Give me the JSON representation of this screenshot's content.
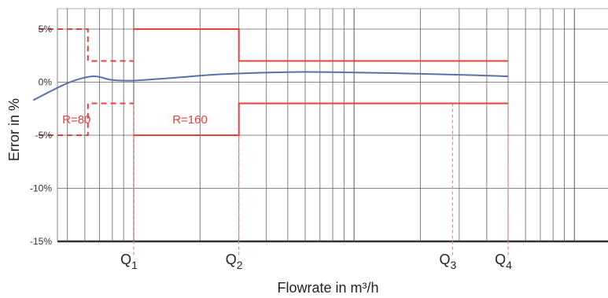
{
  "chart_data": {
    "type": "line",
    "title": "",
    "xlabel": "Flowrate in m³/h",
    "ylabel": "Error in %",
    "y_ticks": [
      "5%",
      "0%",
      "-5%",
      "-10%",
      "-15%"
    ],
    "y_tick_values": [
      5,
      0,
      -5,
      -10,
      -15
    ],
    "ylim": [
      -15,
      5
    ],
    "x_scale": "log",
    "grid": true,
    "colors": {
      "curve": "#5b6ea8",
      "limit": "#e8403c",
      "grid": "#444444",
      "guide": "#f08a82"
    },
    "flow_markers": [
      {
        "base": "Q",
        "sub": "1",
        "x": 1.0
      },
      {
        "base": "Q",
        "sub": "2",
        "x": 3.0
      },
      {
        "base": "Q",
        "sub": "3",
        "x": 28.0
      },
      {
        "base": "Q",
        "sub": "4",
        "x": 50.0
      }
    ],
    "annotations": [
      {
        "text": "R=80",
        "x": 0.55,
        "y": -3.9
      },
      {
        "text": "R=160",
        "x": 1.8,
        "y": -3.9
      }
    ],
    "series": [
      {
        "role": "error-curve",
        "style": "solid",
        "x": [
          0.35,
          0.5,
          0.65,
          0.8,
          1.0,
          1.5,
          2.5,
          5,
          8,
          15,
          30,
          50
        ],
        "y": [
          -1.7,
          -0.1,
          0.55,
          0.2,
          0.15,
          0.4,
          0.75,
          0.95,
          0.95,
          0.85,
          0.7,
          0.55
        ]
      },
      {
        "role": "mpe-upper-R80",
        "style": "dashed",
        "x": [
          0.37,
          0.62,
          0.62,
          1.0
        ],
        "y": [
          5,
          5,
          2,
          2
        ]
      },
      {
        "role": "mpe-lower-R80",
        "style": "dashed",
        "x": [
          0.37,
          0.62,
          0.62,
          1.0
        ],
        "y": [
          -5,
          -5,
          -2,
          -2
        ]
      },
      {
        "role": "mpe-upper-R160",
        "style": "solid",
        "x": [
          1.0,
          3.0,
          3.0,
          50
        ],
        "y": [
          5,
          5,
          2,
          2
        ]
      },
      {
        "role": "mpe-lower-R160",
        "style": "solid",
        "x": [
          1.0,
          3.0,
          3.0,
          50
        ],
        "y": [
          -5,
          -5,
          -2,
          -2
        ]
      }
    ]
  }
}
